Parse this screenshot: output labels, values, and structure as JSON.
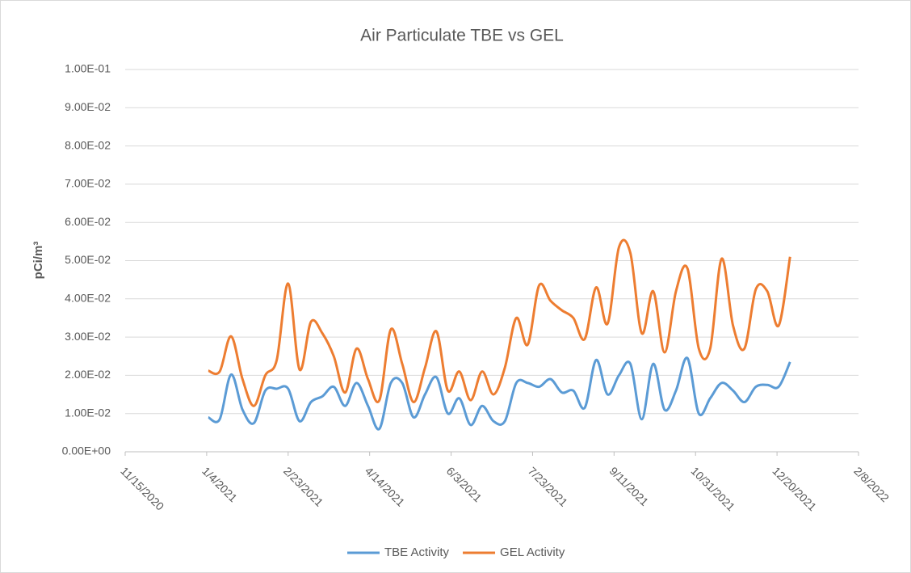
{
  "chart_data": {
    "type": "line",
    "title": "Air Particulate TBE vs GEL",
    "y_label": "pCi/m³",
    "x": [
      "2021-01-05",
      "2021-01-12",
      "2021-01-19",
      "2021-01-26",
      "2021-02-02",
      "2021-02-09",
      "2021-02-16",
      "2021-02-23",
      "2021-03-02",
      "2021-03-09",
      "2021-03-16",
      "2021-03-23",
      "2021-03-30",
      "2021-04-06",
      "2021-04-13",
      "2021-04-20",
      "2021-04-27",
      "2021-05-04",
      "2021-05-11",
      "2021-05-18",
      "2021-05-25",
      "2021-06-01",
      "2021-06-08",
      "2021-06-15",
      "2021-06-22",
      "2021-06-29",
      "2021-07-06",
      "2021-07-13",
      "2021-07-20",
      "2021-07-27",
      "2021-08-03",
      "2021-08-10",
      "2021-08-17",
      "2021-08-24",
      "2021-08-31",
      "2021-09-07",
      "2021-09-14",
      "2021-09-21",
      "2021-09-28",
      "2021-10-05",
      "2021-10-12",
      "2021-10-19",
      "2021-10-26",
      "2021-11-02",
      "2021-11-09",
      "2021-11-16",
      "2021-11-23",
      "2021-11-30",
      "2021-12-07",
      "2021-12-14",
      "2021-12-21",
      "2021-12-28"
    ],
    "series": [
      {
        "name": "TBE Activity",
        "color": "#5b9bd5",
        "values": [
          0.009,
          0.0085,
          0.0202,
          0.011,
          0.0075,
          0.016,
          0.0165,
          0.0165,
          0.008,
          0.013,
          0.0145,
          0.017,
          0.012,
          0.018,
          0.012,
          0.006,
          0.018,
          0.018,
          0.009,
          0.015,
          0.0195,
          0.01,
          0.014,
          0.007,
          0.012,
          0.008,
          0.008,
          0.018,
          0.018,
          0.017,
          0.019,
          0.0155,
          0.016,
          0.0115,
          0.024,
          0.015,
          0.02,
          0.023,
          0.0085,
          0.023,
          0.011,
          0.016,
          0.0245,
          0.01,
          0.014,
          0.018,
          0.016,
          0.013,
          0.017,
          0.0175,
          0.017,
          0.0235
        ]
      },
      {
        "name": "GEL Activity",
        "color": "#ed7d31",
        "values": [
          0.0212,
          0.021,
          0.0302,
          0.019,
          0.012,
          0.02,
          0.024,
          0.044,
          0.0215,
          0.034,
          0.031,
          0.025,
          0.0155,
          0.027,
          0.019,
          0.0135,
          0.032,
          0.023,
          0.013,
          0.022,
          0.0315,
          0.016,
          0.021,
          0.0135,
          0.021,
          0.015,
          0.022,
          0.035,
          0.028,
          0.0435,
          0.0395,
          0.037,
          0.035,
          0.0295,
          0.043,
          0.0335,
          0.0535,
          0.052,
          0.031,
          0.042,
          0.026,
          0.042,
          0.048,
          0.027,
          0.027,
          0.0505,
          0.033,
          0.027,
          0.0425,
          0.042,
          0.033,
          0.051
        ]
      }
    ],
    "xlim": [
      "2020-11-15",
      "2022-02-08"
    ],
    "xticks": [
      {
        "value": "2020-11-15",
        "label": "11/15/2020"
      },
      {
        "value": "2021-01-04",
        "label": "1/4/2021"
      },
      {
        "value": "2021-02-23",
        "label": "2/23/2021"
      },
      {
        "value": "2021-04-14",
        "label": "4/14/2021"
      },
      {
        "value": "2021-06-03",
        "label": "6/3/2021"
      },
      {
        "value": "2021-07-23",
        "label": "7/23/2021"
      },
      {
        "value": "2021-09-11",
        "label": "9/11/2021"
      },
      {
        "value": "2021-10-31",
        "label": "10/31/2021"
      },
      {
        "value": "2021-12-20",
        "label": "12/20/2021"
      },
      {
        "value": "2022-02-08",
        "label": "2/8/2022"
      }
    ],
    "ylim": [
      0,
      0.1
    ],
    "yticks": [
      {
        "value": 0,
        "label": "0.00E+00"
      },
      {
        "value": 0.01,
        "label": "1.00E-02"
      },
      {
        "value": 0.02,
        "label": "2.00E-02"
      },
      {
        "value": 0.03,
        "label": "3.00E-02"
      },
      {
        "value": 0.04,
        "label": "4.00E-02"
      },
      {
        "value": 0.05,
        "label": "5.00E-02"
      },
      {
        "value": 0.06,
        "label": "6.00E-02"
      },
      {
        "value": 0.07,
        "label": "7.00E-02"
      },
      {
        "value": 0.08,
        "label": "8.00E-02"
      },
      {
        "value": 0.09,
        "label": "9.00E-02"
      },
      {
        "value": 0.1,
        "label": "1.00E-01"
      }
    ],
    "grid": true,
    "smooth": true,
    "legend": "bottom"
  }
}
